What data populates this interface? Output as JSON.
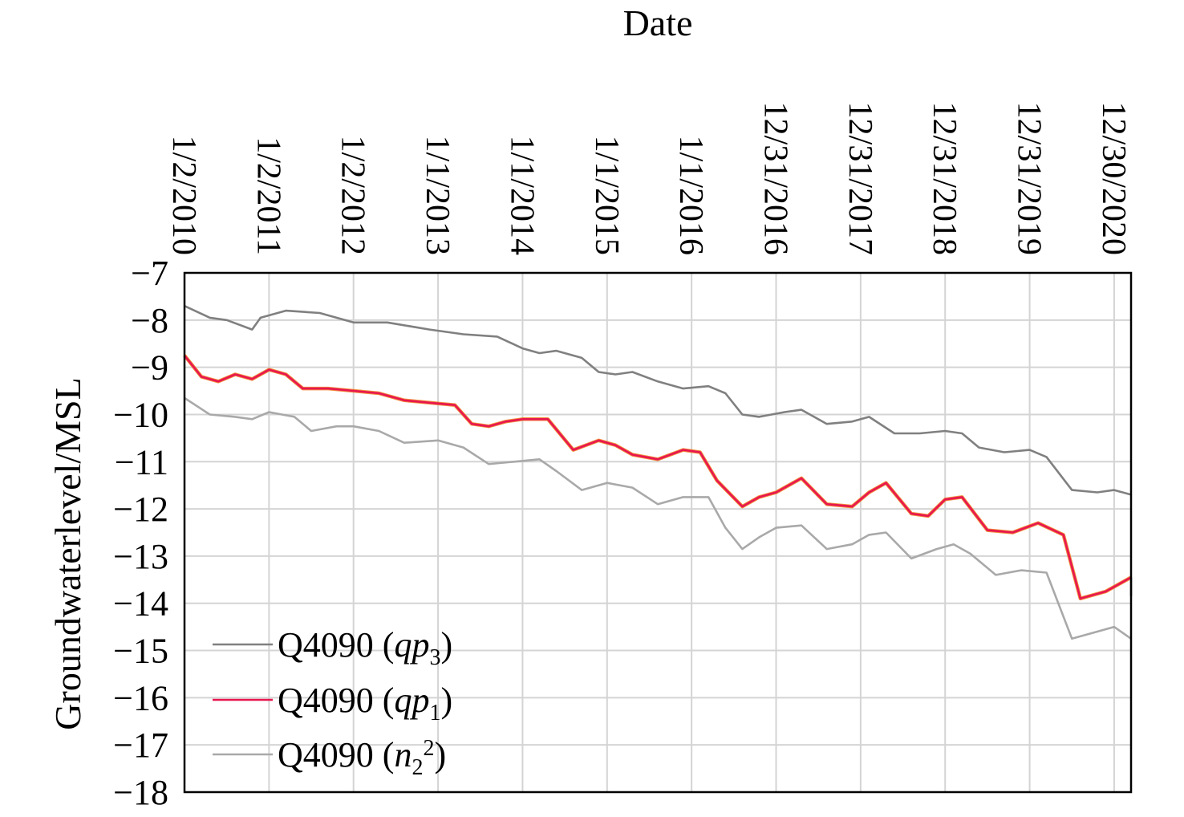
{
  "chart_data": {
    "type": "line",
    "title": "",
    "xlabel": "Date",
    "ylabel": "Groundwaterlevel/MSL",
    "ylim": [
      -18,
      -7
    ],
    "yticks": [
      "−7",
      "−8",
      "−9",
      "−10",
      "−11",
      "−12",
      "−13",
      "−14",
      "−15",
      "−16",
      "−17",
      "−18"
    ],
    "xticks": [
      "1/2/2010",
      "1/2/2011",
      "1/2/2012",
      "1/1/2013",
      "1/1/2014",
      "1/1/2015",
      "1/1/2016",
      "12/31/2016",
      "12/31/2017",
      "12/31/2018",
      "12/31/2019",
      "12/30/2020"
    ],
    "grid": true,
    "legend_position": "bottom-left",
    "legend": [
      {
        "base": "Q4090 (",
        "var": "qp",
        "sub": "3",
        "sup": "",
        "close": ")"
      },
      {
        "base": "Q4090 (",
        "var": "qp",
        "sub": "1",
        "sup": "",
        "close": ")"
      },
      {
        "base": "Q4090 (",
        "var": "n",
        "sub": "2",
        "sup": "2",
        "close": ")"
      }
    ],
    "series": [
      {
        "color": "#808080",
        "x": [
          0,
          0.3,
          0.5,
          0.8,
          0.9,
          1.2,
          1.6,
          2.0,
          2.4,
          2.9,
          3.3,
          3.7,
          4.0,
          4.2,
          4.4,
          4.7,
          4.9,
          5.1,
          5.3,
          5.6,
          5.9,
          6.2,
          6.4,
          6.6,
          6.8,
          7.1,
          7.3,
          7.6,
          7.9,
          8.1,
          8.4,
          8.7,
          9.0,
          9.2,
          9.4,
          9.7,
          10.0,
          10.2,
          10.5,
          10.8,
          11.0,
          11.2
        ],
        "y": [
          -7.7,
          -7.95,
          -8.0,
          -8.2,
          -7.95,
          -7.8,
          -7.85,
          -8.05,
          -8.05,
          -8.2,
          -8.3,
          -8.35,
          -8.6,
          -8.7,
          -8.65,
          -8.8,
          -9.1,
          -9.15,
          -9.1,
          -9.3,
          -9.45,
          -9.4,
          -9.55,
          -10.0,
          -10.05,
          -9.95,
          -9.9,
          -10.2,
          -10.15,
          -10.05,
          -10.4,
          -10.4,
          -10.35,
          -10.4,
          -10.7,
          -10.8,
          -10.75,
          -10.9,
          -11.6,
          -11.65,
          -11.6,
          -11.7
        ]
      },
      {
        "color": "#e8164f",
        "highlight": "#f07a1a",
        "x": [
          0,
          0.2,
          0.4,
          0.6,
          0.8,
          1.0,
          1.2,
          1.4,
          1.7,
          2.0,
          2.3,
          2.6,
          2.9,
          3.2,
          3.4,
          3.6,
          3.8,
          4.0,
          4.3,
          4.6,
          4.9,
          5.1,
          5.3,
          5.6,
          5.9,
          6.1,
          6.3,
          6.6,
          6.8,
          7.0,
          7.3,
          7.6,
          7.9,
          8.1,
          8.3,
          8.6,
          8.8,
          9.0,
          9.2,
          9.5,
          9.8,
          10.1,
          10.4,
          10.6,
          10.9,
          11.2
        ],
        "y": [
          -8.75,
          -9.2,
          -9.3,
          -9.15,
          -9.25,
          -9.05,
          -9.15,
          -9.45,
          -9.45,
          -9.5,
          -9.55,
          -9.7,
          -9.75,
          -9.8,
          -10.2,
          -10.25,
          -10.15,
          -10.1,
          -10.1,
          -10.75,
          -10.55,
          -10.65,
          -10.85,
          -10.95,
          -10.75,
          -10.8,
          -11.4,
          -11.95,
          -11.75,
          -11.65,
          -11.35,
          -11.9,
          -11.95,
          -11.65,
          -11.45,
          -12.1,
          -12.15,
          -11.8,
          -11.75,
          -12.45,
          -12.5,
          -12.3,
          -12.55,
          -13.9,
          -13.75,
          -13.45
        ],
        "tail_x": [
          11.2
        ],
        "tail_y": [
          -13.85
        ]
      },
      {
        "color": "#a9a9a9",
        "x": [
          0,
          0.3,
          0.6,
          0.8,
          1.0,
          1.3,
          1.5,
          1.8,
          2.0,
          2.3,
          2.6,
          3.0,
          3.3,
          3.6,
          3.9,
          4.2,
          4.4,
          4.7,
          5.0,
          5.3,
          5.6,
          5.9,
          6.2,
          6.4,
          6.6,
          6.8,
          7.0,
          7.3,
          7.6,
          7.9,
          8.1,
          8.3,
          8.6,
          8.9,
          9.1,
          9.3,
          9.6,
          9.9,
          10.2,
          10.5,
          10.8,
          11.0,
          11.2
        ],
        "y": [
          -9.65,
          -10.0,
          -10.05,
          -10.1,
          -9.95,
          -10.05,
          -10.35,
          -10.25,
          -10.25,
          -10.35,
          -10.6,
          -10.55,
          -10.7,
          -11.05,
          -11.0,
          -10.95,
          -11.2,
          -11.6,
          -11.45,
          -11.55,
          -11.9,
          -11.75,
          -11.75,
          -12.4,
          -12.85,
          -12.6,
          -12.4,
          -12.35,
          -12.85,
          -12.75,
          -12.55,
          -12.5,
          -13.05,
          -12.85,
          -12.75,
          -12.95,
          -13.4,
          -13.3,
          -13.35,
          -14.75,
          -14.6,
          -14.5,
          -14.75
        ]
      }
    ]
  }
}
